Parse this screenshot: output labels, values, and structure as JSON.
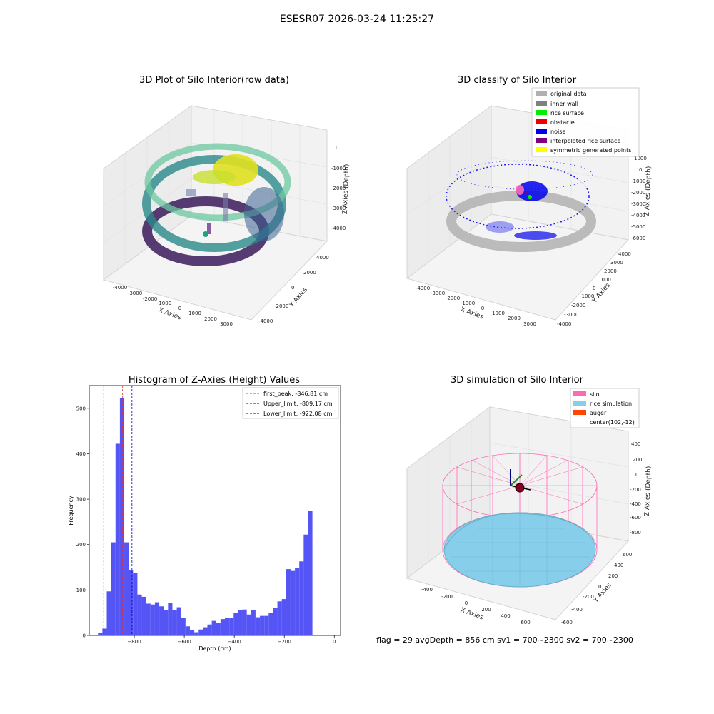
{
  "suptitle": "ESESR07 2026-03-24 11:25:27",
  "status_line": "flag = 29  avgDepth = 856 cm  sv1 = 700~2300  sv2 = 700~2300",
  "colors": {
    "hist_bar": "#5050f5",
    "first_peak": "#e03030",
    "limits": "#0000cc",
    "original": "#b0b0b0",
    "inner_wall": "#808080",
    "rice_surface": "#00ee00",
    "obstacle": "#ee0000",
    "noise": "#0000ee",
    "interpolated": "#800080",
    "symmetric": "#ffff00",
    "silo": "#ff69b4",
    "rice_sim": "#87ceeb",
    "auger": "#ff4500"
  },
  "chart_data": [
    {
      "type": "scatter",
      "subtype": "3d",
      "title": "3D Plot of Silo Interior(row data)",
      "xlabel": "X Axies",
      "ylabel": "Y Axies",
      "zlabel": "Z Axies (Depth)",
      "xticks": [
        "-4000",
        "-3000",
        "-2000",
        "-1000",
        "0",
        "1000",
        "2000",
        "3000"
      ],
      "yticks": [
        "-4000",
        "-2000",
        "0",
        "2000",
        "4000"
      ],
      "zticks": [
        "0",
        "-1000",
        "-2000",
        "-3000",
        "-4000"
      ],
      "colormap": "viridis",
      "grid": true
    },
    {
      "type": "scatter",
      "subtype": "3d",
      "title": "3D classify of Silo Interior",
      "xlabel": "X Axies",
      "ylabel": "Y Axies",
      "zlabel": "Z Axies (Depth)",
      "xticks": [
        "-4000",
        "-3000",
        "-2000",
        "-1000",
        "0",
        "1000",
        "2000",
        "3000"
      ],
      "yticks": [
        "-4000",
        "-3000",
        "-2000",
        "-1000",
        "0",
        "1000",
        "2000",
        "3000",
        "4000"
      ],
      "zticks": [
        "1000",
        "0",
        "-1000",
        "-2000",
        "-3000",
        "-4000",
        "-5000",
        "-6000"
      ],
      "legend": [
        "original data",
        "inner wall",
        "rice surface",
        "obstacle",
        "noise",
        "interpolated rice surface",
        "symmetric generated points"
      ],
      "legend_position": "top-right",
      "grid": true
    },
    {
      "type": "bar",
      "subtype": "histogram",
      "title": "Histogram of Z-Axies (Height) Values",
      "xlabel": "Depth (cm)",
      "ylabel": "Frequency",
      "xlim": [
        -980,
        25
      ],
      "ylim": [
        0,
        550
      ],
      "xticks": [
        -800,
        -600,
        -400,
        -200,
        0
      ],
      "yticks": [
        0,
        100,
        200,
        300,
        400,
        500
      ],
      "bin_width": 17.5,
      "bin_start": -945,
      "values": [
        5,
        15,
        97,
        205,
        422,
        522,
        205,
        144,
        138,
        90,
        85,
        70,
        68,
        73,
        64,
        55,
        71,
        55,
        62,
        39,
        20,
        11,
        7,
        13,
        18,
        24,
        32,
        28,
        36,
        38,
        38,
        49,
        55,
        57,
        46,
        55,
        40,
        43,
        43,
        49,
        60,
        75,
        80,
        146,
        142,
        148,
        163,
        222,
        275
      ],
      "lines": [
        {
          "label": "first_peak: -846.81 cm",
          "x": -846.81,
          "style": "dashed",
          "color": "#e03030"
        },
        {
          "label": "Upper_limit: -809.17 cm",
          "x": -809.17,
          "style": "dashed",
          "color": "#0000cc"
        },
        {
          "label": "Lower_limit: -922.08 cm",
          "x": -922.08,
          "style": "dashed",
          "color": "#0000cc"
        }
      ],
      "legend_position": "top-right"
    },
    {
      "type": "scatter",
      "subtype": "3d",
      "title": "3D simulation of Silo Interior",
      "xlabel": "X Axies",
      "ylabel": "Y Axies",
      "zlabel": "Z Axies (Depth)",
      "xticks": [
        "-400",
        "-200",
        "0",
        "200",
        "400",
        "600"
      ],
      "yticks": [
        "-600",
        "-400",
        "-200",
        "0",
        "200",
        "400",
        "600"
      ],
      "zticks": [
        "400",
        "200",
        "0",
        "-200",
        "-400",
        "-600",
        "-800"
      ],
      "legend": [
        "silo",
        "rice simulation",
        "auger",
        "center(102,-12)"
      ],
      "legend_position": "top-right",
      "grid": true
    }
  ]
}
